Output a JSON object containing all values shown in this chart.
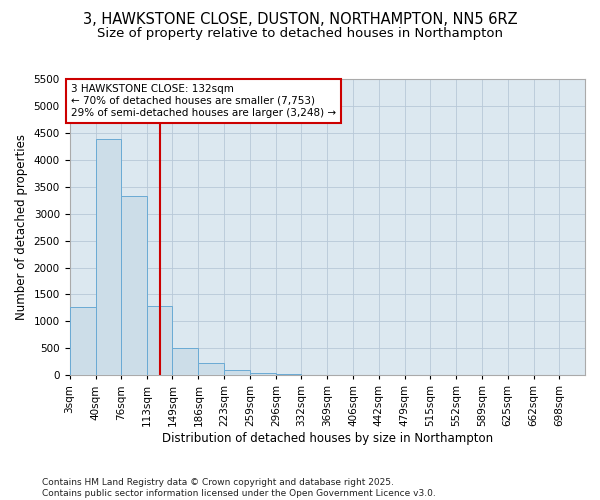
{
  "title": "3, HAWKSTONE CLOSE, DUSTON, NORTHAMPTON, NN5 6RZ",
  "subtitle": "Size of property relative to detached houses in Northampton",
  "xlabel": "Distribution of detached houses by size in Northampton",
  "ylabel": "Number of detached properties",
  "bar_color": "#ccdde8",
  "bar_edge_color": "#6aaad4",
  "grid_color": "#b8c8d8",
  "background_color": "#dce8f0",
  "annotation_box_color": "#cc0000",
  "vline_color": "#cc0000",
  "vline_x": 132,
  "annotation_title": "3 HAWKSTONE CLOSE: 132sqm",
  "annotation_line2": "← 70% of detached houses are smaller (7,753)",
  "annotation_line3": "29% of semi-detached houses are larger (3,248) →",
  "footer_text": "Contains HM Land Registry data © Crown copyright and database right 2025.\nContains public sector information licensed under the Open Government Licence v3.0.",
  "bin_edges": [
    3,
    40,
    76,
    113,
    149,
    186,
    223,
    259,
    296,
    332,
    369,
    406,
    442,
    479,
    515,
    552,
    589,
    625,
    662,
    698,
    735
  ],
  "bin_values": [
    1270,
    4380,
    3320,
    1280,
    500,
    230,
    90,
    40,
    15,
    4,
    2,
    1,
    1,
    0,
    0,
    0,
    0,
    0,
    0,
    0
  ],
  "ylim": [
    0,
    5500
  ],
  "yticks": [
    0,
    500,
    1000,
    1500,
    2000,
    2500,
    3000,
    3500,
    4000,
    4500,
    5000,
    5500
  ],
  "title_fontsize": 10.5,
  "subtitle_fontsize": 9.5,
  "axis_label_fontsize": 8.5,
  "tick_fontsize": 7.5,
  "footer_fontsize": 6.5
}
